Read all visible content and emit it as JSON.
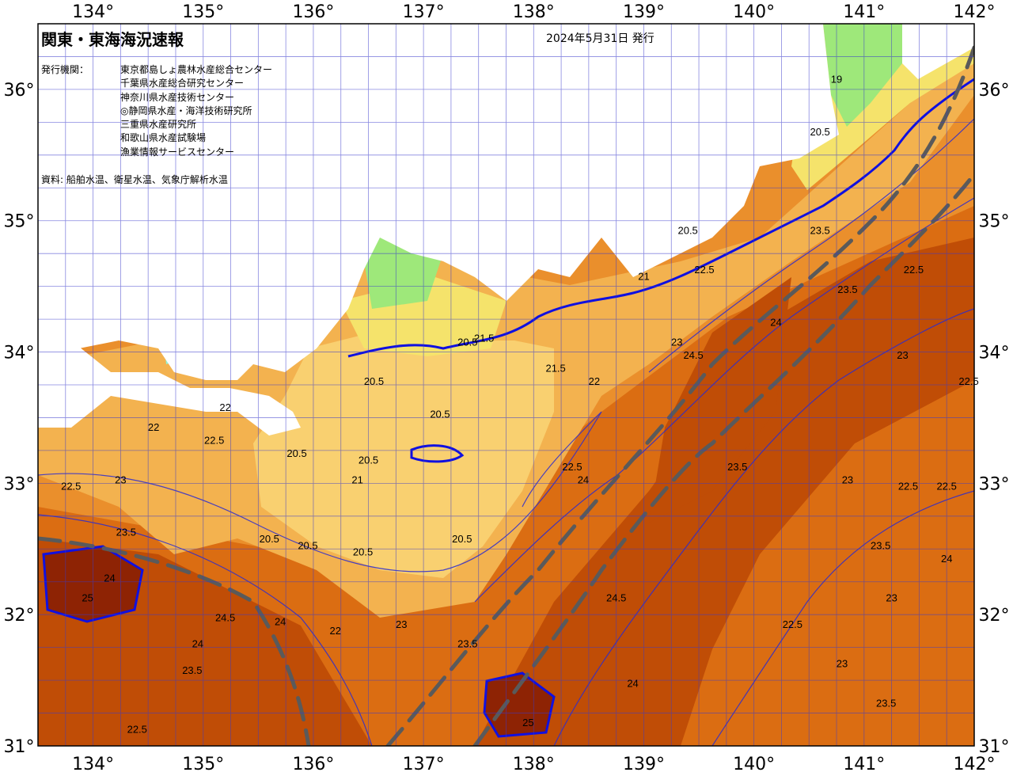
{
  "title": "関東・東海海況速報",
  "issued": "2024年5月31日 発行",
  "issuers": {
    "label": "発行機関：",
    "organizations": [
      "東京都島しょ農林水産総合センター",
      "千葉県水産総合研究センター",
      "神奈川県水産技術センター",
      "◎静岡県水産・海洋技術研究所",
      "三重県水産研究所",
      "和歌山県水産試験場",
      "漁業情報サービスセンター"
    ]
  },
  "source": "資料: 船舶水温、衛星水温、気象庁解析水温",
  "axes": {
    "lon_labels": [
      "134°",
      "135°",
      "136°",
      "137°",
      "138°",
      "139°",
      "140°",
      "141°",
      "142°"
    ],
    "lat_labels": [
      "36°",
      "35°",
      "34°",
      "33°",
      "32°",
      "31°"
    ],
    "lon_range": [
      133.5,
      142
    ],
    "lat_range": [
      31,
      36.5
    ]
  },
  "colors": {
    "sst_19": "#9ee87a",
    "sst_20": "#f5e36b",
    "sst_20_5": "#f9d070",
    "sst_21": "#f3b24f",
    "sst_22": "#ea8f2c",
    "sst_23": "#db6d12",
    "sst_24": "#c04d06",
    "sst_25": "#8e2304",
    "isoline": "#1a1ad8",
    "front_20": "#1010e0",
    "kuroshio_axis": "#5a5a5a",
    "land": "#ffffff"
  },
  "isotherm_labels": [
    {
      "text": "19",
      "lon": 140.75,
      "lat": 36.05
    },
    {
      "text": "20.5",
      "lon": 140.6,
      "lat": 35.65
    },
    {
      "text": "20.5",
      "lon": 139.4,
      "lat": 34.9
    },
    {
      "text": "21",
      "lon": 139.0,
      "lat": 34.55
    },
    {
      "text": "20.5",
      "lon": 137.4,
      "lat": 34.05
    },
    {
      "text": "21.5",
      "lon": 137.55,
      "lat": 34.08
    },
    {
      "text": "20.5",
      "lon": 136.55,
      "lat": 33.75
    },
    {
      "text": "20.5",
      "lon": 137.15,
      "lat": 33.5
    },
    {
      "text": "20.5",
      "lon": 135.85,
      "lat": 33.2
    },
    {
      "text": "20.5",
      "lon": 136.5,
      "lat": 33.15
    },
    {
      "text": "21",
      "lon": 136.4,
      "lat": 33.0
    },
    {
      "text": "20.5",
      "lon": 135.6,
      "lat": 32.55
    },
    {
      "text": "20.5",
      "lon": 135.95,
      "lat": 32.5
    },
    {
      "text": "20.5",
      "lon": 136.45,
      "lat": 32.45
    },
    {
      "text": "20.5",
      "lon": 137.35,
      "lat": 32.55
    },
    {
      "text": "21.5",
      "lon": 138.2,
      "lat": 33.85
    },
    {
      "text": "22",
      "lon": 138.55,
      "lat": 33.75
    },
    {
      "text": "22.5",
      "lon": 138.35,
      "lat": 33.1
    },
    {
      "text": "23",
      "lon": 139.3,
      "lat": 34.05
    },
    {
      "text": "24.5",
      "lon": 139.45,
      "lat": 33.95
    },
    {
      "text": "24",
      "lon": 140.2,
      "lat": 34.2
    },
    {
      "text": "23.5",
      "lon": 140.85,
      "lat": 34.45
    },
    {
      "text": "23",
      "lon": 141.35,
      "lat": 33.95
    },
    {
      "text": "22.5",
      "lon": 141.95,
      "lat": 33.75
    },
    {
      "text": "22.5",
      "lon": 141.45,
      "lat": 34.6
    },
    {
      "text": "23.5",
      "lon": 140.6,
      "lat": 34.9
    },
    {
      "text": "22.5",
      "lon": 139.55,
      "lat": 34.6
    },
    {
      "text": "23.5",
      "lon": 139.85,
      "lat": 33.1
    },
    {
      "text": "24",
      "lon": 138.45,
      "lat": 33.0
    },
    {
      "text": "23",
      "lon": 140.85,
      "lat": 33.0
    },
    {
      "text": "22.5",
      "lon": 141.4,
      "lat": 32.95
    },
    {
      "text": "22.5",
      "lon": 141.75,
      "lat": 32.95
    },
    {
      "text": "22",
      "lon": 136.2,
      "lat": 31.85
    },
    {
      "text": "24",
      "lon": 135.7,
      "lat": 31.92
    },
    {
      "text": "24.5",
      "lon": 135.2,
      "lat": 31.95
    },
    {
      "text": "24",
      "lon": 134.15,
      "lat": 32.25
    },
    {
      "text": "25",
      "lon": 133.95,
      "lat": 32.1
    },
    {
      "text": "24.5",
      "lon": 138.75,
      "lat": 32.1
    },
    {
      "text": "23.5",
      "lon": 137.4,
      "lat": 31.75
    },
    {
      "text": "24",
      "lon": 138.9,
      "lat": 31.45
    },
    {
      "text": "22.5",
      "lon": 140.35,
      "lat": 31.9
    },
    {
      "text": "23",
      "lon": 140.8,
      "lat": 31.6
    },
    {
      "text": "23.5",
      "lon": 141.2,
      "lat": 31.3
    },
    {
      "text": "24",
      "lon": 141.75,
      "lat": 32.4
    },
    {
      "text": "23.5",
      "lon": 134.9,
      "lat": 31.55
    },
    {
      "text": "22.5",
      "lon": 134.4,
      "lat": 31.1
    },
    {
      "text": "25",
      "lon": 137.95,
      "lat": 31.15
    },
    {
      "text": "22.5",
      "lon": 133.8,
      "lat": 32.95
    },
    {
      "text": "23",
      "lon": 134.25,
      "lat": 33.0
    },
    {
      "text": "22",
      "lon": 134.55,
      "lat": 33.4
    },
    {
      "text": "22.5",
      "lon": 135.1,
      "lat": 33.3
    },
    {
      "text": "22",
      "lon": 135.2,
      "lat": 33.55
    },
    {
      "text": "23.5",
      "lon": 134.3,
      "lat": 32.6
    },
    {
      "text": "24",
      "lon": 134.95,
      "lat": 31.75
    },
    {
      "text": "23",
      "lon": 136.8,
      "lat": 31.9
    },
    {
      "text": "23",
      "lon": 141.25,
      "lat": 32.1
    },
    {
      "text": "23.5",
      "lon": 141.15,
      "lat": 32.5
    }
  ]
}
